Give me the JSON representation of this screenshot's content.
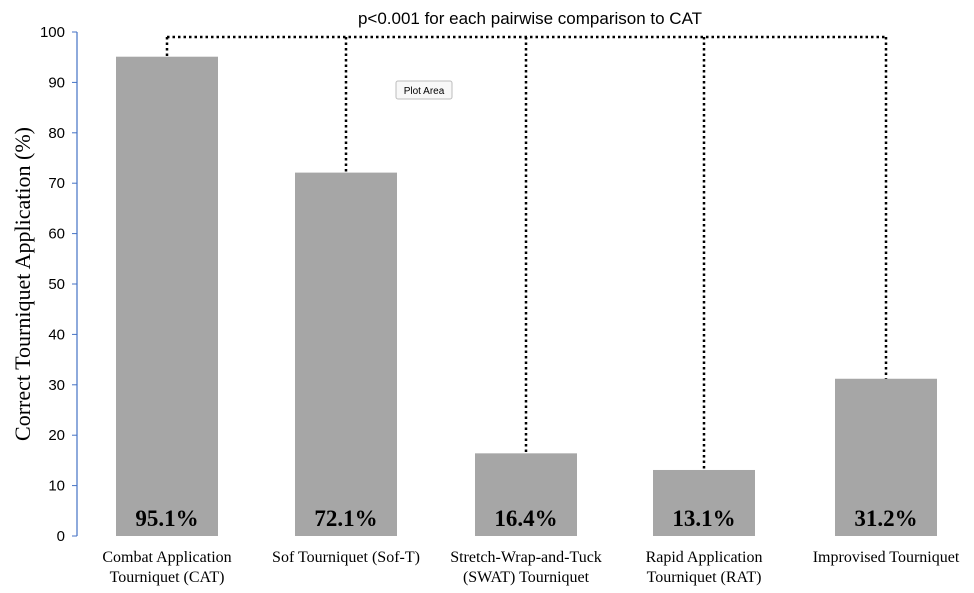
{
  "chart_data": {
    "type": "bar",
    "categories": [
      [
        "Combat Application",
        "Tourniquet (CAT)"
      ],
      [
        "Sof Tourniquet (Sof-T)"
      ],
      [
        "Stretch-Wrap-and-Tuck",
        "(SWAT) Tourniquet"
      ],
      [
        "Rapid Application",
        "Tourniquet (RAT)"
      ],
      [
        "Improvised Tourniquet"
      ]
    ],
    "values": [
      95.1,
      72.1,
      16.4,
      13.1,
      31.2
    ],
    "data_labels": [
      "95.1%",
      "72.1%",
      "16.4%",
      "13.1%",
      "31.2%"
    ],
    "ylabel": "Correct Tourniquet Application (%)",
    "xlabel": "",
    "ylim": [
      0,
      100
    ],
    "yticks": [
      0,
      10,
      20,
      30,
      40,
      50,
      60,
      70,
      80,
      90,
      100
    ],
    "annotation": "p<0.001 for each pairwise comparison to CAT",
    "grid": false,
    "legend": "none",
    "bar_color": "#a6a6a6",
    "axis_color": "#4472c4",
    "tooltip": "Plot Area"
  }
}
